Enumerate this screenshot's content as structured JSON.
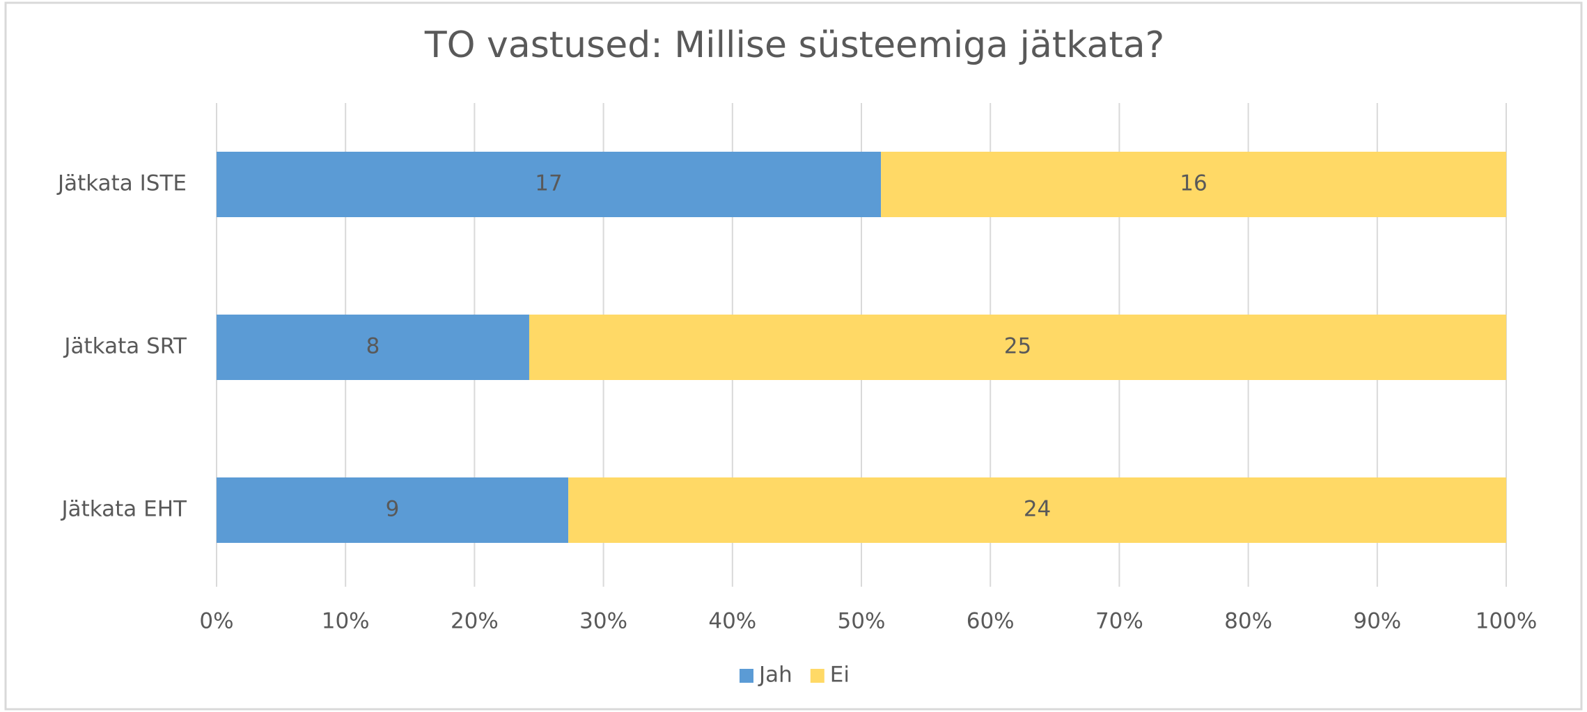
{
  "chart_data": {
    "type": "bar",
    "orientation": "horizontal",
    "stacking": "percent",
    "title": "TO vastused: Millise süsteemiga jätkata?",
    "categories": [
      "Jätkata ISTE",
      "Jätkata SRT",
      "Jätkata EHT"
    ],
    "series": [
      {
        "name": "Jah",
        "color": "#5b9bd5",
        "values": [
          17,
          8,
          9
        ]
      },
      {
        "name": "Ei",
        "color": "#ffd966",
        "values": [
          16,
          25,
          24
        ]
      }
    ],
    "xlim": [
      0,
      100
    ],
    "xticks": [
      {
        "value": 0,
        "label": "0%"
      },
      {
        "value": 10,
        "label": "10%"
      },
      {
        "value": 20,
        "label": "20%"
      },
      {
        "value": 30,
        "label": "30%"
      },
      {
        "value": 40,
        "label": "40%"
      },
      {
        "value": 50,
        "label": "50%"
      },
      {
        "value": 60,
        "label": "60%"
      },
      {
        "value": 70,
        "label": "70%"
      },
      {
        "value": 80,
        "label": "80%"
      },
      {
        "value": 90,
        "label": "90%"
      },
      {
        "value": 100,
        "label": "100%"
      }
    ],
    "grid": true,
    "legend": "bottom"
  }
}
